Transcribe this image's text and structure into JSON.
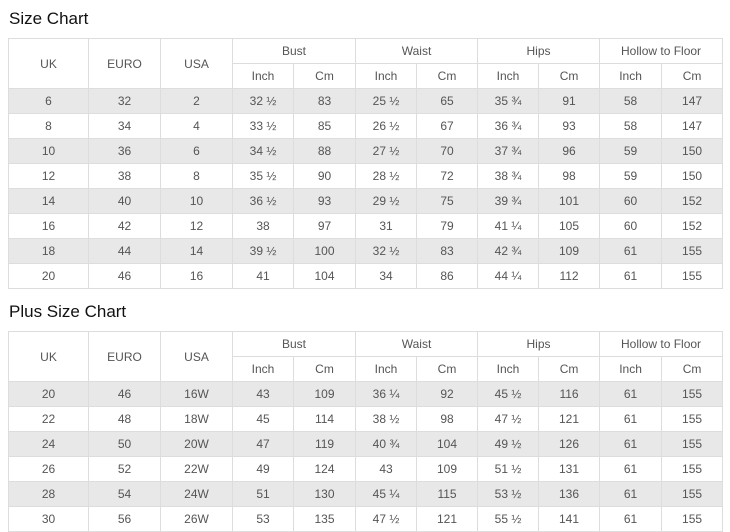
{
  "header": {
    "uk": "UK",
    "euro": "EURO",
    "usa": "USA",
    "bust": "Bust",
    "waist": "Waist",
    "hips": "Hips",
    "hollow_to_floor": "Hollow to Floor",
    "inch": "Inch",
    "cm": "Cm"
  },
  "size_chart": {
    "title": "Size Chart",
    "rows": [
      [
        "6",
        "32",
        "2",
        "32 ½",
        "83",
        "25 ½",
        "65",
        "35 ¾",
        "91",
        "58",
        "147"
      ],
      [
        "8",
        "34",
        "4",
        "33 ½",
        "85",
        "26 ½",
        "67",
        "36 ¾",
        "93",
        "58",
        "147"
      ],
      [
        "10",
        "36",
        "6",
        "34 ½",
        "88",
        "27 ½",
        "70",
        "37 ¾",
        "96",
        "59",
        "150"
      ],
      [
        "12",
        "38",
        "8",
        "35 ½",
        "90",
        "28 ½",
        "72",
        "38 ¾",
        "98",
        "59",
        "150"
      ],
      [
        "14",
        "40",
        "10",
        "36 ½",
        "93",
        "29 ½",
        "75",
        "39 ¾",
        "101",
        "60",
        "152"
      ],
      [
        "16",
        "42",
        "12",
        "38",
        "97",
        "31",
        "79",
        "41 ¼",
        "105",
        "60",
        "152"
      ],
      [
        "18",
        "44",
        "14",
        "39 ½",
        "100",
        "32 ½",
        "83",
        "42 ¾",
        "109",
        "61",
        "155"
      ],
      [
        "20",
        "46",
        "16",
        "41",
        "104",
        "34",
        "86",
        "44 ¼",
        "112",
        "61",
        "155"
      ]
    ]
  },
  "plus_size_chart": {
    "title": "Plus Size Chart",
    "rows": [
      [
        "20",
        "46",
        "16W",
        "43",
        "109",
        "36 ¼",
        "92",
        "45 ½",
        "116",
        "61",
        "155"
      ],
      [
        "22",
        "48",
        "18W",
        "45",
        "114",
        "38 ½",
        "98",
        "47 ½",
        "121",
        "61",
        "155"
      ],
      [
        "24",
        "50",
        "20W",
        "47",
        "119",
        "40 ¾",
        "104",
        "49 ½",
        "126",
        "61",
        "155"
      ],
      [
        "26",
        "52",
        "22W",
        "49",
        "124",
        "43",
        "109",
        "51 ½",
        "131",
        "61",
        "155"
      ],
      [
        "28",
        "54",
        "24W",
        "51",
        "130",
        "45 ¼",
        "115",
        "53 ½",
        "136",
        "61",
        "155"
      ],
      [
        "30",
        "56",
        "26W",
        "53",
        "135",
        "47 ½",
        "121",
        "55 ½",
        "141",
        "61",
        "155"
      ]
    ]
  },
  "colors": {
    "stripe_row": "#e8e8e8",
    "border": "#dddddd",
    "text": "#555555",
    "title_text": "#111111"
  }
}
